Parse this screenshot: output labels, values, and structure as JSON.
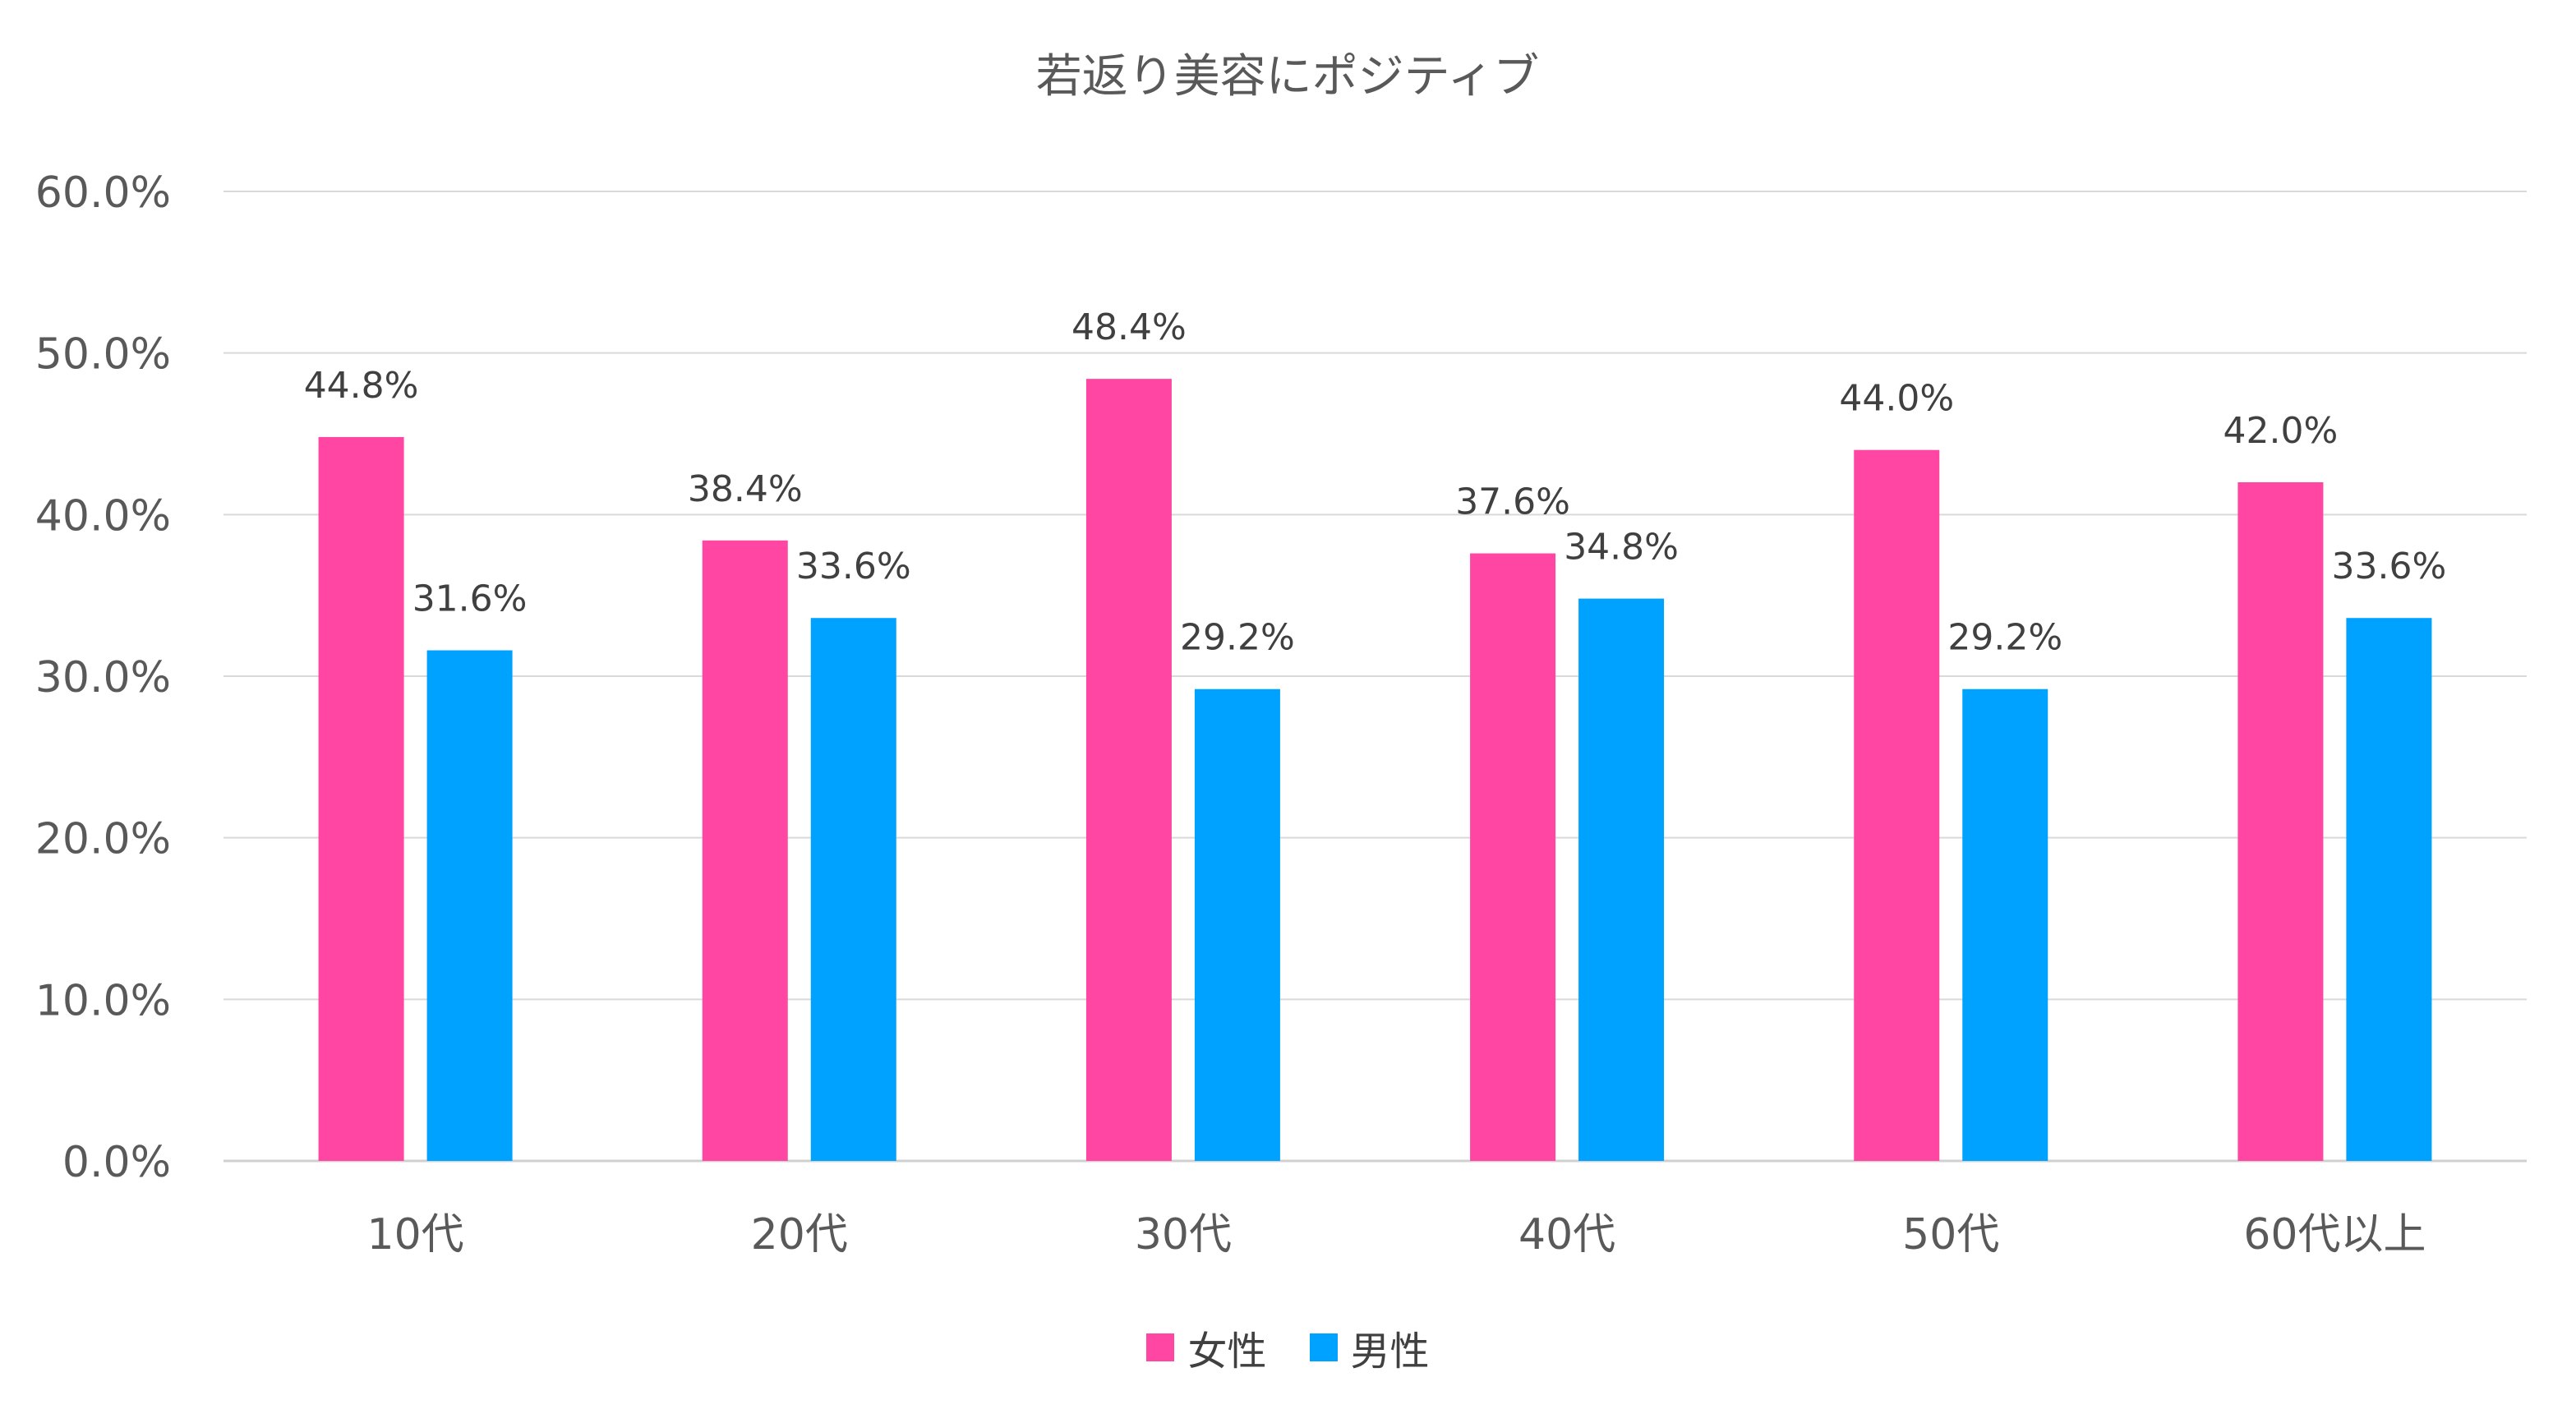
{
  "chart_data": {
    "type": "bar",
    "title": "若返り美容にポジティブ",
    "categories": [
      "10代",
      "20代",
      "30代",
      "40代",
      "50代",
      "60代以上"
    ],
    "series": [
      {
        "name": "女性",
        "color": "#FF46A2",
        "values": [
          44.8,
          38.4,
          48.4,
          37.6,
          44.0,
          42.0
        ],
        "labels": [
          "44.8%",
          "38.4%",
          "48.4%",
          "37.6%",
          "44.0%",
          "42.0%"
        ]
      },
      {
        "name": "男性",
        "color": "#00A2FF",
        "values": [
          31.6,
          33.6,
          29.2,
          34.8,
          29.2,
          33.6
        ],
        "labels": [
          "31.6%",
          "33.6%",
          "29.2%",
          "34.8%",
          "29.2%",
          "33.6%"
        ]
      }
    ],
    "ylim": [
      0,
      60
    ],
    "yticks": [
      "0.0%",
      "10.0%",
      "20.0%",
      "30.0%",
      "40.0%",
      "50.0%",
      "60.0%"
    ],
    "xlabel": "",
    "ylabel": "",
    "grid": true,
    "legend_position": "bottom"
  }
}
